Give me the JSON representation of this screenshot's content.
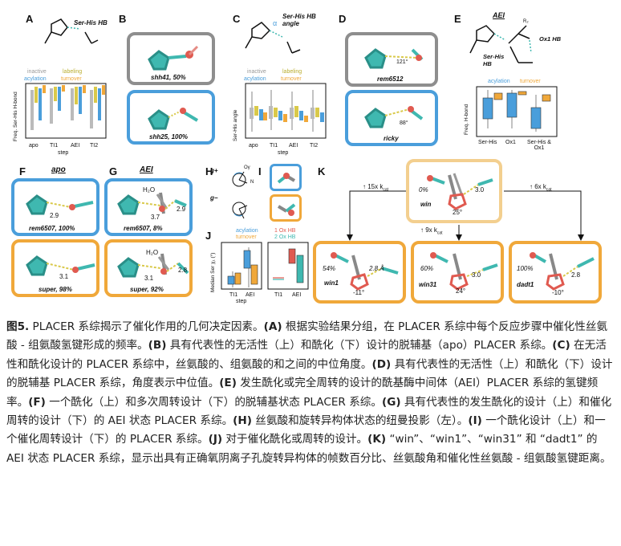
{
  "panels": {
    "A": {
      "label": "A",
      "note": "Ser-His HB",
      "legend": {
        "inactive": "inactive",
        "labeling": "labeling",
        "acylation": "acylation",
        "turnover": "turnover"
      },
      "ylabel": "Freq. Ser-His H-bond",
      "xlabel": "step",
      "ticks": [
        "apo",
        "TI1",
        "AEI",
        "TI2"
      ]
    },
    "B": {
      "label": "B",
      "top": "shh41, 50%",
      "bottom": "shh25, 100%"
    },
    "C": {
      "label": "C",
      "note": "Ser-His HB angle",
      "alpha": "α",
      "legend": {
        "inactive": "inactive",
        "labeling": "labeling",
        "acylation": "acylation",
        "turnover": "turnover"
      },
      "ylabel": "Ser-His angle",
      "xlabel": "step",
      "ticks": [
        "apo",
        "TI1",
        "AEI",
        "TI2"
      ]
    },
    "D": {
      "label": "D",
      "top": "rem6512",
      "top_angle": "121°",
      "bottom": "ricky",
      "bottom_angle": "88°"
    },
    "E": {
      "label": "E",
      "title": "AEI",
      "r": "R₂",
      "ser_his": "Ser-His HB",
      "ox1": "Ox1 HB",
      "legend": {
        "acylation": "acylation",
        "turnover": "turnover"
      },
      "ylabel": "Freq. H-bond",
      "ticks": [
        "Ser-His",
        "Ox1",
        "Ser-His & Ox1"
      ]
    },
    "F": {
      "label": "F",
      "title": "apo",
      "top": "rem6507, 100%",
      "top_dist": "2.9",
      "bottom": "super, 98%",
      "bottom_dist": "3.1"
    },
    "G": {
      "label": "G",
      "title": "AEI",
      "top": "rem6507, 8%",
      "top_h2o": "H₂O",
      "top_d1": "3.7",
      "top_d2": "2.9",
      "bottom": "super, 92%",
      "bottom_h2o": "H₂O",
      "bottom_d1": "3.1",
      "bottom_d2": "2.8"
    },
    "H": {
      "label": "H",
      "g_plus": "g+",
      "g_minus": "g−",
      "og": "Oγ",
      "n": "N"
    },
    "I": {
      "label": "I"
    },
    "J": {
      "label": "J",
      "legend1": {
        "acylation": "acylation",
        "turnover": "turnover"
      },
      "legend2": {
        "ox1": "1 Ox HB",
        "ox2": "2 Ox HB"
      },
      "ylabel": "Median Ser χ₁ (°)",
      "ticks_left": [
        "TI1",
        "AEI"
      ],
      "ticks_right": [
        "TI1",
        "AEI"
      ],
      "xlabel": "step"
    },
    "K": {
      "label": "K",
      "arrow_left": "↑ 15x k",
      "arrow_mid": "↑ 9x k",
      "arrow_right": "↑ 6x k",
      "sub": "cat",
      "win": {
        "name": "win",
        "pct": "0%",
        "dist": "3.0",
        "angle": "25°"
      },
      "win1": {
        "name": "win1",
        "pct": "54%",
        "dist": "2.8 Å",
        "angle": "-11°"
      },
      "win31": {
        "name": "win31",
        "pct": "60%",
        "dist": "3.0",
        "angle": "24°"
      },
      "dadt1": {
        "name": "dadt1",
        "pct": "100%",
        "dist": "2.8",
        "angle": "-10°"
      }
    }
  },
  "caption": {
    "fig": "图5.",
    "p0": " PLACER 系综揭示了催化作用的几何决定因素。",
    "A": "(A)",
    "tA": " 根据实验结果分组，在 PLACER 系综中每个反应步骤中催化性丝氨酸 - 组氨酸氢键形成的频率。",
    "B": "(B)",
    "tB": " 具有代表性的无活性（上）和酰化（下）设计的脱辅基（apo）PLACER 系综。",
    "C": "(C)",
    "tC": " 在无活性和酰化设计的 PLACER 系综中，丝氨酸的、组氨酸的和之间的中位角度。",
    "D": "(D)",
    "tD": " 具有代表性的无活性（上）和酰化（下）设计的脱辅基 PLACER 系综，角度表示中位值。",
    "E": "(E)",
    "tE": " 发生酰化或完全周转的设计的酰基酶中间体（AEI）PLACER 系综的氢键频率。",
    "F": "(F)",
    "tF": " 一个酰化（上）和多次周转设计（下）的脱辅基状态 PLACER 系综。",
    "G": "(G)",
    "tG": " 具有代表性的发生酰化的设计（上）和催化周转的设计（下）的 AEI 状态 PLACER 系综。",
    "H": "(H)",
    "tH": " 丝氨酸和旋转异构体状态的纽曼投影（左）。",
    "I": "(I)",
    "tI": " 一个酰化设计（上）和一个催化周转设计（下）的 PLACER 系综。",
    "J": "(J)",
    "tJ": " 对于催化酰化或周转的设计。",
    "K": "(K)",
    "tK": " “win”、“win1”、“win31” 和 “dadt1” 的 AEI 状态 PLACER 系综，显示出具有正确氧阴离子孔旋转异构体的帧数百分比、丝氨酸角和催化性丝氨酸 - 组氨酸氢键距离。"
  },
  "colors": {
    "teal": "#3fb8b0",
    "blue": "#4a9edb",
    "orange": "#f0a83a",
    "gray": "#8e8e8e",
    "red": "#e05a50",
    "yellow": "#d9c94a"
  }
}
